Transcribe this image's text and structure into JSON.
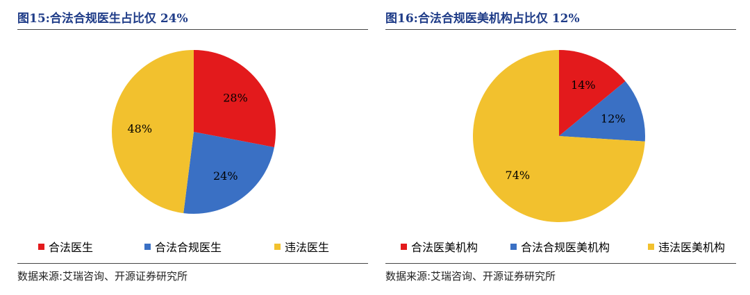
{
  "chart_data": [
    {
      "type": "pie",
      "title": "图15:合法合规医生占比仅 24%",
      "slices": [
        {
          "label": "合法医生",
          "value": 28,
          "value_label": "28%",
          "color": "#e31a1c"
        },
        {
          "label": "合法合规医生",
          "value": 24,
          "value_label": "24%",
          "color": "#3a70c4"
        },
        {
          "label": "违法医生",
          "value": 48,
          "value_label": "48%",
          "color": "#f2c12e"
        }
      ],
      "legend_position": "bottom",
      "source": "数据来源:艾瑞咨询、开源证券研究所"
    },
    {
      "type": "pie",
      "title": "图16:合法合规医美机构占比仅 12%",
      "slices": [
        {
          "label": "合法医美机构",
          "value": 14,
          "value_label": "14%",
          "color": "#e31a1c"
        },
        {
          "label": "合法合规医美机构",
          "value": 12,
          "value_label": "12%",
          "color": "#3a70c4"
        },
        {
          "label": "违法医美机构",
          "value": 74,
          "value_label": "74%",
          "color": "#f2c12e"
        }
      ],
      "legend_position": "bottom",
      "source": "数据来源:艾瑞咨询、开源证券研究所"
    }
  ]
}
